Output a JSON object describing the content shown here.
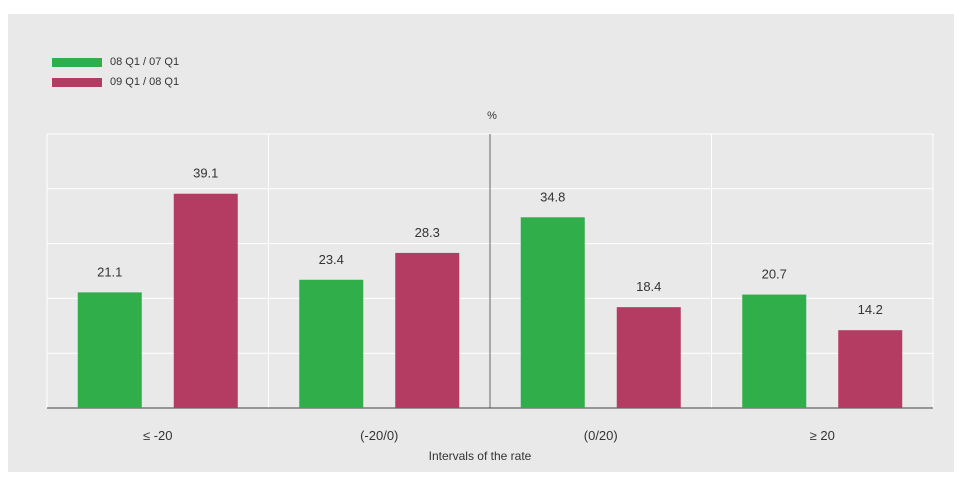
{
  "chart_data": {
    "type": "bar",
    "categories": [
      "≤ -20",
      "(-20/0)",
      "(0/20)",
      "≥ 20"
    ],
    "series": [
      {
        "name": "08 Q1 / 07 Q1",
        "color": "#2fae4a",
        "values": [
          21.1,
          23.4,
          34.8,
          20.7
        ]
      },
      {
        "name": "09 Q1 / 08 Q1",
        "color": "#b43c62",
        "values": [
          39.1,
          28.3,
          18.4,
          14.2
        ]
      }
    ],
    "unit_label": "%",
    "xlabel": "Intervals of the rate",
    "ylabel": "",
    "ylim": [
      0,
      50
    ],
    "grid": true,
    "legend_position": "top-left"
  }
}
